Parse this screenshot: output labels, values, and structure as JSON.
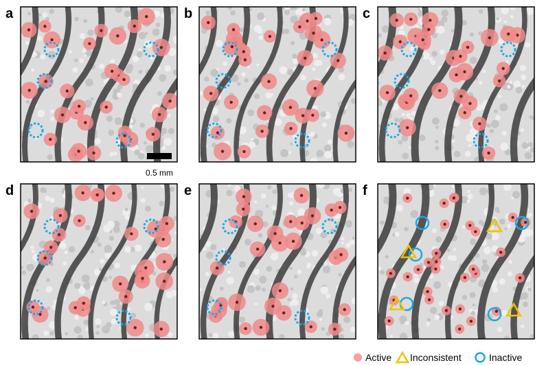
{
  "panels": [
    "a",
    "b",
    "c",
    "d",
    "e",
    "f"
  ],
  "scale_bar": "0.5 mm",
  "legend": [
    "Active",
    "Inconsistent",
    "Inactive"
  ]
}
